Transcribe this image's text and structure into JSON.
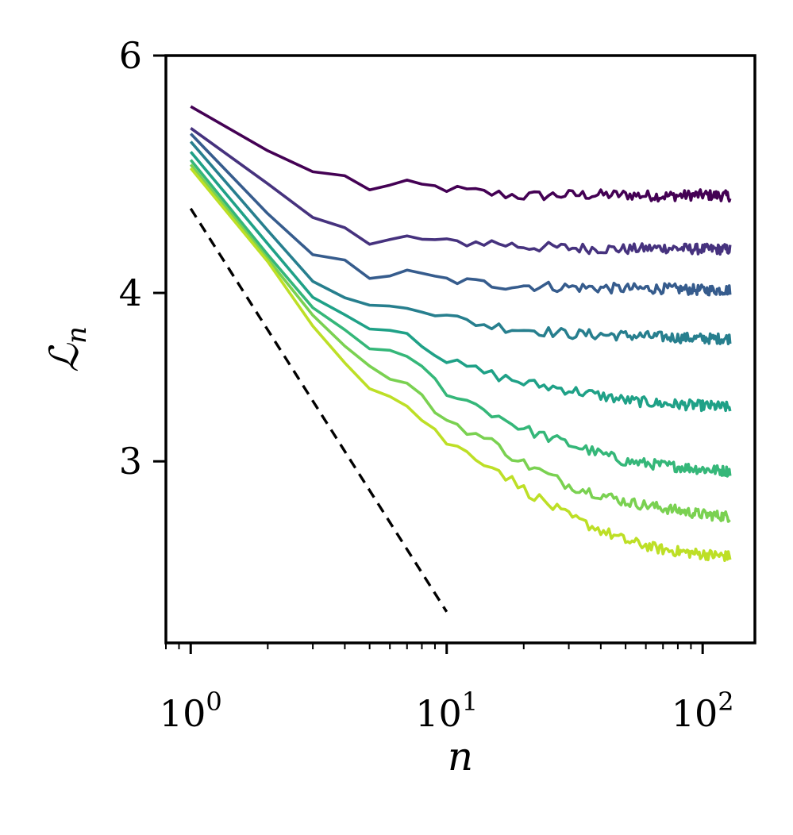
{
  "chart_data": {
    "type": "line",
    "title": "",
    "xlabel": "n",
    "ylabel": "ℒ",
    "ylabel_sub": "n",
    "x_scale": "log",
    "y_scale": "log",
    "xlim": [
      0.8,
      160
    ],
    "ylim": [
      2.2,
      6
    ],
    "x_ticks": [
      {
        "value": 1,
        "base": "10",
        "exp": "0"
      },
      {
        "value": 10,
        "base": "10",
        "exp": "1"
      },
      {
        "value": 100,
        "base": "10",
        "exp": "2"
      }
    ],
    "y_ticks": [
      {
        "value": 3,
        "label": "3"
      },
      {
        "value": 4,
        "label": "4"
      },
      {
        "value": 6,
        "label": "6"
      }
    ],
    "grid": false,
    "legend": "none",
    "colormap": "viridis",
    "x_points": [
      1,
      2,
      3,
      4,
      5,
      7,
      10,
      15,
      20,
      30,
      50,
      70,
      100,
      128
    ],
    "series": [
      {
        "color": "#440154",
        "values": [
          5.5,
          5.1,
          4.92,
          4.88,
          4.78,
          4.82,
          4.78,
          4.74,
          4.72,
          4.73,
          4.73,
          4.72,
          4.73,
          4.72
        ]
      },
      {
        "color": "#46327e",
        "values": [
          5.3,
          4.82,
          4.55,
          4.47,
          4.34,
          4.4,
          4.36,
          4.36,
          4.33,
          4.32,
          4.31,
          4.32,
          4.31,
          4.31
        ]
      },
      {
        "color": "#365c8d",
        "values": [
          5.25,
          4.58,
          4.27,
          4.22,
          4.11,
          4.14,
          4.09,
          4.06,
          4.05,
          4.04,
          4.03,
          4.03,
          4.02,
          4.02
        ]
      },
      {
        "color": "#277f8e",
        "values": [
          5.18,
          4.45,
          4.08,
          3.96,
          3.91,
          3.92,
          3.84,
          3.78,
          3.76,
          3.73,
          3.72,
          3.71,
          3.7,
          3.7
        ]
      },
      {
        "color": "#1fa187",
        "values": [
          5.09,
          4.35,
          3.97,
          3.85,
          3.78,
          3.74,
          3.56,
          3.48,
          3.43,
          3.39,
          3.33,
          3.31,
          3.3,
          3.29
        ]
      },
      {
        "color": "#35b779",
        "values": [
          5.02,
          4.27,
          3.9,
          3.75,
          3.62,
          3.6,
          3.38,
          3.26,
          3.17,
          3.09,
          3.0,
          2.98,
          2.96,
          2.95
        ]
      },
      {
        "color": "#7ad151",
        "values": [
          4.98,
          4.24,
          3.85,
          3.65,
          3.52,
          3.42,
          3.22,
          3.1,
          2.99,
          2.88,
          2.8,
          2.77,
          2.74,
          2.73
        ]
      },
      {
        "color": "#bddf26",
        "values": [
          4.95,
          4.22,
          3.78,
          3.56,
          3.41,
          3.3,
          3.1,
          2.98,
          2.86,
          2.73,
          2.62,
          2.58,
          2.56,
          2.55
        ]
      }
    ],
    "reference_line": {
      "style": "dashed",
      "color": "#000000",
      "x": [
        1,
        10
      ],
      "y": [
        4.62,
        2.32
      ]
    }
  }
}
